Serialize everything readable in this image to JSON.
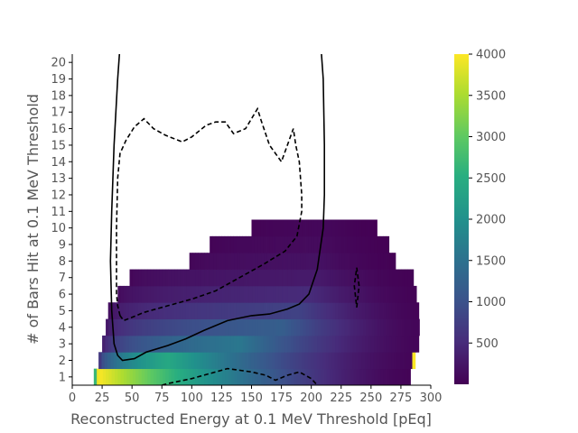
{
  "chart_data": {
    "type": "heatmap",
    "xlabel": "Reconstructed Energy at 0.1 MeV Threshold [pEq]",
    "ylabel": "# of Bars Hit at 0.1 MeV Threshold",
    "xlim": [
      0,
      300
    ],
    "ylim": [
      0.5,
      20.5
    ],
    "x_ticks": [
      "0",
      "25",
      "50",
      "75",
      "100",
      "125",
      "150",
      "175",
      "200",
      "225",
      "250",
      "275",
      "300"
    ],
    "y_ticks": [
      "1",
      "2",
      "3",
      "4",
      "5",
      "6",
      "7",
      "8",
      "9",
      "10",
      "11",
      "12",
      "13",
      "14",
      "15",
      "16",
      "17",
      "18",
      "19",
      "20"
    ],
    "bin_width": 2.5,
    "colormap": "viridis",
    "colorbar": {
      "min": 0,
      "max": 4000,
      "ticks": [
        "500",
        "1000",
        "1500",
        "2000",
        "2500",
        "3000",
        "3500",
        "4000"
      ]
    },
    "heatmap_rows": [
      {
        "bars": 1,
        "x_start": 18,
        "x_end": 282,
        "peak_x": 22,
        "peak_value": 4000,
        "tail_value": 40
      },
      {
        "bars": 2,
        "x_start": 22,
        "x_end": 285,
        "peak_x": 80,
        "peak_value": 2400,
        "tail_value": 60
      },
      {
        "bars": 3,
        "x_start": 25,
        "x_end": 290,
        "peak_x": 140,
        "peak_value": 1600,
        "tail_value": 60
      },
      {
        "bars": 4,
        "x_start": 28,
        "x_end": 290,
        "peak_x": 175,
        "peak_value": 1200,
        "tail_value": 60
      },
      {
        "bars": 5,
        "x_start": 30,
        "x_end": 290,
        "peak_x": 190,
        "peak_value": 800,
        "tail_value": 40
      },
      {
        "bars": 6,
        "x_start": 38,
        "x_end": 288,
        "peak_x": 200,
        "peak_value": 500,
        "tail_value": 30
      },
      {
        "bars": 7,
        "x_start": 48,
        "x_end": 285,
        "peak_x": 205,
        "peak_value": 300,
        "tail_value": 20
      },
      {
        "bars": 8,
        "x_start": 98,
        "x_end": 270,
        "peak_x": 205,
        "peak_value": 200,
        "tail_value": 15
      },
      {
        "bars": 9,
        "x_start": 115,
        "x_end": 265,
        "peak_x": 210,
        "peak_value": 120,
        "tail_value": 10
      },
      {
        "bars": 10,
        "x_start": 150,
        "x_end": 255,
        "peak_x": 215,
        "peak_value": 80,
        "tail_value": 5
      }
    ],
    "series": [
      {
        "style": "solid",
        "color": "#000000",
        "points": [
          [
            40,
            21
          ],
          [
            38,
            19
          ],
          [
            35,
            15
          ],
          [
            33,
            11
          ],
          [
            32,
            8
          ],
          [
            33,
            5
          ],
          [
            35,
            3
          ],
          [
            38,
            2.3
          ],
          [
            42,
            2.0
          ],
          [
            52,
            2.1
          ],
          [
            62,
            2.5
          ],
          [
            80,
            2.9
          ],
          [
            95,
            3.3
          ],
          [
            110,
            3.8
          ],
          [
            130,
            4.4
          ],
          [
            150,
            4.7
          ],
          [
            165,
            4.8
          ],
          [
            180,
            5.1
          ],
          [
            190,
            5.4
          ],
          [
            198,
            6
          ],
          [
            205,
            7.5
          ],
          [
            210,
            10
          ],
          [
            211,
            12
          ],
          [
            211,
            15
          ],
          [
            210,
            19
          ],
          [
            208,
            21
          ]
        ]
      },
      {
        "style": "dashed",
        "color": "#000000",
        "points": [
          [
            40,
            4.7
          ],
          [
            38,
            5.3
          ],
          [
            37,
            6
          ],
          [
            37,
            10
          ],
          [
            38,
            13
          ],
          [
            40,
            14.5
          ],
          [
            45,
            15.3
          ],
          [
            52,
            16.1
          ],
          [
            60,
            16.6
          ],
          [
            68,
            16.0
          ],
          [
            78,
            15.6
          ],
          [
            92,
            15.2
          ],
          [
            100,
            15.5
          ],
          [
            112,
            16.2
          ],
          [
            120,
            16.4
          ],
          [
            128,
            16.4
          ],
          [
            135,
            15.7
          ],
          [
            145,
            16.0
          ],
          [
            155,
            17.2
          ],
          [
            158,
            16.5
          ],
          [
            165,
            15
          ],
          [
            175,
            14
          ],
          [
            185,
            16
          ],
          [
            187,
            15
          ],
          [
            190,
            14
          ],
          [
            192,
            12
          ],
          [
            192,
            11
          ],
          [
            188,
            9.5
          ],
          [
            178,
            8.6
          ],
          [
            160,
            7.8
          ],
          [
            140,
            7.0
          ],
          [
            120,
            6.2
          ],
          [
            100,
            5.7
          ],
          [
            80,
            5.3
          ],
          [
            60,
            4.9
          ],
          [
            50,
            4.6
          ],
          [
            43,
            4.4
          ],
          [
            40,
            4.7
          ]
        ]
      },
      {
        "style": "dashed",
        "color": "#000000",
        "points": [
          [
            75,
            0.5
          ],
          [
            80,
            0.6
          ],
          [
            100,
            0.9
          ],
          [
            130,
            1.5
          ],
          [
            150,
            1.3
          ],
          [
            162,
            1.1
          ],
          [
            170,
            0.8
          ],
          [
            180,
            1.1
          ],
          [
            190,
            1.3
          ],
          [
            200,
            0.9
          ],
          [
            205,
            0.5
          ]
        ]
      },
      {
        "style": "dashed",
        "color": "#000000",
        "points": [
          [
            238,
            5.2
          ],
          [
            240,
            6.5
          ],
          [
            238,
            7.6
          ],
          [
            236,
            6.5
          ],
          [
            238,
            5.2
          ]
        ]
      }
    ]
  }
}
